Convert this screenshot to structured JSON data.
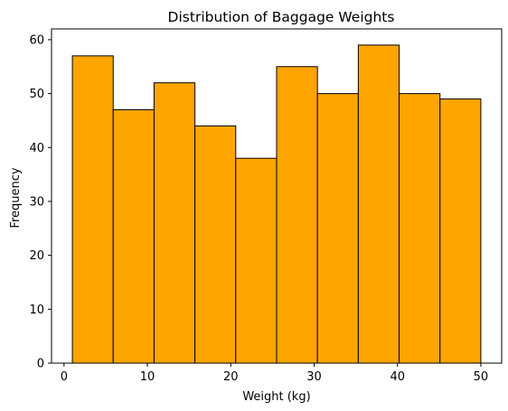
{
  "chart_data": {
    "type": "bar",
    "title": "Distribution of Baggage Weights",
    "xlabel": "Weight (kg)",
    "ylabel": "Frequency",
    "bin_edges": [
      1.0,
      5.9,
      10.8,
      15.7,
      20.6,
      25.5,
      30.4,
      35.3,
      40.2,
      45.1,
      50.0
    ],
    "values": [
      57,
      47,
      52,
      44,
      38,
      55,
      50,
      59,
      50,
      49
    ],
    "xlim": [
      -1.5,
      52.5
    ],
    "ylim": [
      0,
      62
    ],
    "xticks": [
      0,
      10,
      20,
      30,
      40,
      50
    ],
    "yticks": [
      0,
      10,
      20,
      30,
      40,
      50,
      60
    ],
    "bar_color": "#ffa500",
    "edge_color": "#000000",
    "grid": false,
    "legend": "none"
  }
}
